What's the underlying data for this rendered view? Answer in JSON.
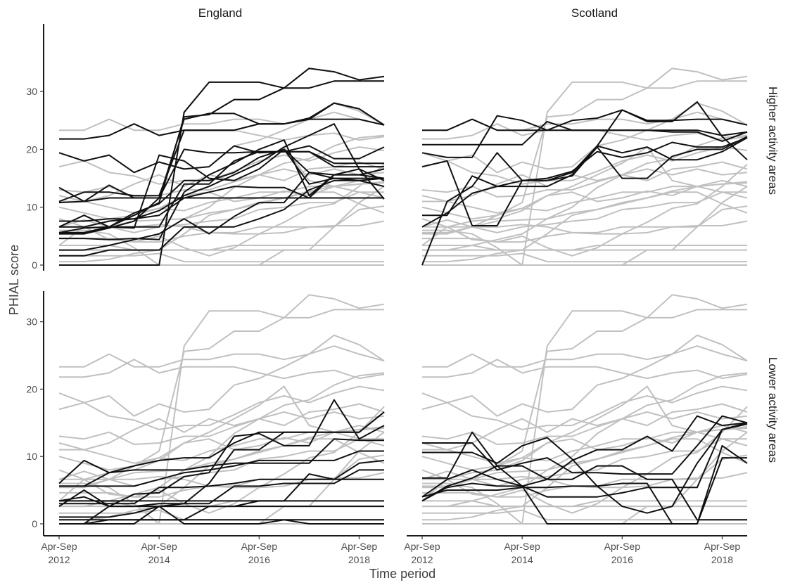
{
  "chart_data": {
    "type": "line",
    "xlabel": "Time period",
    "ylabel": "PHIAL score",
    "columns": [
      "England",
      "Scotland"
    ],
    "rows": [
      "Higher activity areas",
      "Lower activity areas"
    ],
    "x_ticks": [
      {
        "x": 2012,
        "line1": "Apr-Sep",
        "line2": "2012"
      },
      {
        "x": 2014,
        "line1": "Apr-Sep",
        "line2": "2014"
      },
      {
        "x": 2016,
        "line1": "Apr-Sep",
        "line2": "2016"
      },
      {
        "x": 2018,
        "line1": "Apr-Sep",
        "line2": "2018"
      }
    ],
    "y_ticks": [
      0,
      10,
      20,
      30
    ],
    "xlim": [
      2012,
      2018.5
    ],
    "ylim": [
      0,
      35
    ],
    "x": [
      2012,
      2012.5,
      2013,
      2013.5,
      2014,
      2014.5,
      2015,
      2015.5,
      2016,
      2016.5,
      2017,
      2017.5,
      2018,
      2018.5
    ],
    "background_color": "#c0c0c0",
    "highlight_color": "#111111",
    "series_background": [
      [
        23.3,
        23.3,
        25.2,
        23.3,
        23.3,
        24.4,
        24.4,
        25.2,
        25.2,
        24.4,
        25.2,
        26.4,
        25.2,
        24.2
      ],
      [
        21.8,
        21.8,
        22.4,
        24.4,
        22.4,
        23.3,
        23.3,
        23.3,
        22.4,
        21.6,
        22.4,
        22.8,
        21.6,
        22.2
      ],
      [
        19.4,
        18.0,
        19.0,
        16.0,
        17.8,
        16.6,
        17.0,
        20.6,
        21.6,
        23.3,
        25.2,
        28.0,
        26.6,
        24.2
      ],
      [
        17.0,
        18.0,
        16.0,
        15.4,
        14.0,
        14.6,
        14.6,
        16.2,
        18.0,
        19.0,
        18.0,
        19.4,
        20.4,
        19.8
      ],
      [
        13.0,
        12.6,
        13.6,
        11.8,
        12.0,
        13.0,
        13.0,
        14.4,
        15.6,
        16.6,
        15.6,
        16.6,
        15.6,
        16.0
      ],
      [
        11.0,
        11.0,
        12.0,
        14.0,
        15.6,
        13.6,
        15.6,
        14.6,
        15.6,
        14.6,
        16.6,
        17.0,
        17.8,
        16.6
      ],
      [
        12.0,
        11.0,
        10.0,
        9.0,
        9.8,
        12.0,
        12.6,
        11.0,
        11.6,
        12.8,
        12.0,
        13.6,
        14.0,
        14.4
      ],
      [
        10.0,
        9.0,
        8.0,
        8.6,
        9.8,
        9.4,
        10.8,
        11.6,
        12.6,
        12.6,
        13.6,
        13.6,
        14.0,
        14.2
      ],
      [
        8.0,
        6.6,
        6.6,
        7.6,
        7.8,
        8.0,
        9.0,
        9.6,
        10.8,
        11.6,
        12.8,
        13.6,
        12.6,
        12.6
      ],
      [
        6.6,
        7.8,
        6.6,
        5.6,
        6.6,
        7.0,
        7.6,
        8.0,
        9.6,
        10.0,
        10.8,
        10.8,
        12.6,
        11.6
      ],
      [
        5.4,
        5.4,
        6.6,
        6.6,
        7.0,
        6.6,
        5.6,
        5.6,
        6.6,
        6.6,
        6.6,
        6.6,
        9.6,
        10.2
      ],
      [
        4.6,
        4.6,
        4.6,
        4.0,
        4.0,
        5.0,
        5.6,
        5.4,
        5.4,
        5.6,
        6.6,
        6.8,
        6.8,
        7.6
      ],
      [
        3.4,
        3.4,
        3.4,
        2.6,
        2.6,
        2.6,
        2.6,
        3.4,
        3.4,
        3.4,
        3.4,
        3.4,
        3.4,
        3.4
      ],
      [
        2.6,
        2.6,
        2.6,
        2.6,
        2.6,
        2.6,
        2.6,
        2.6,
        2.6,
        2.6,
        2.6,
        2.6,
        2.6,
        2.6
      ],
      [
        1.6,
        1.6,
        1.6,
        1.6,
        2.0,
        0.6,
        0.6,
        0.6,
        0.6,
        0.6,
        0.6,
        0.6,
        0.6,
        0.6
      ],
      [
        0.0,
        0.0,
        0.0,
        0.0,
        0.0,
        0.0,
        0.0,
        0.0,
        0.0,
        0.0,
        0.0,
        0.0,
        0.0,
        0.0
      ],
      [
        0.0,
        0.0,
        0.0,
        0.0,
        0.0,
        26.4,
        31.6,
        31.6,
        31.6,
        30.6,
        34.0,
        33.4,
        32.0,
        32.6
      ],
      [
        5.6,
        5.6,
        6.6,
        8.6,
        10.8,
        25.6,
        26.0,
        28.6,
        28.6,
        30.6,
        30.6,
        31.8,
        31.8,
        31.8
      ],
      [
        6.6,
        6.6,
        7.6,
        8.0,
        9.4,
        12.0,
        13.6,
        15.6,
        17.6,
        20.4,
        14.6,
        13.6,
        14.6,
        13.6
      ],
      [
        2.6,
        2.6,
        3.4,
        4.4,
        5.4,
        8.0,
        10.0,
        13.4,
        15.6,
        17.6,
        18.4,
        20.6,
        22.0,
        22.4
      ],
      [
        3.4,
        6.6,
        4.4,
        4.0,
        5.0,
        3.0,
        1.6,
        3.0,
        5.4,
        7.4,
        9.8,
        10.6,
        13.6,
        17.4
      ],
      [
        6.0,
        6.0,
        5.4,
        3.0,
        0.0,
        0.0,
        0.0,
        0.0,
        0.0,
        2.6,
        2.6,
        6.6,
        10.8,
        13.6
      ],
      [
        0.6,
        0.6,
        1.0,
        2.0,
        2.6,
        5.4,
        8.6,
        9.6,
        10.6,
        11.6,
        12.6,
        12.6,
        10.6,
        9.0
      ]
    ],
    "panels": [
      {
        "column": "England",
        "row": "Higher activity areas",
        "highlight": [
          [
            21.8,
            21.8,
            22.4,
            24.4,
            22.4,
            23.3,
            23.3,
            23.3,
            24.4,
            24.4,
            25.2,
            28.0,
            27.0,
            24.2
          ],
          [
            19.4,
            18.0,
            19.0,
            16.0,
            17.8,
            16.6,
            17.0,
            20.6,
            19.4,
            19.6,
            20.6,
            18.4,
            18.4,
            20.4
          ],
          [
            13.4,
            11.0,
            13.8,
            11.6,
            11.6,
            25.2,
            26.2,
            26.2,
            24.4,
            24.4,
            25.4,
            28.0,
            27.0,
            24.2
          ],
          [
            11.0,
            12.6,
            12.6,
            12.0,
            12.0,
            23.3,
            23.3,
            23.3,
            24.4,
            24.4,
            25.2,
            25.2,
            25.2,
            24.2
          ],
          [
            10.8,
            11.0,
            11.6,
            11.6,
            11.6,
            11.6,
            11.6,
            11.6,
            11.6,
            11.6,
            11.6,
            11.6,
            11.6,
            11.6
          ],
          [
            7.6,
            7.6,
            8.0,
            8.0,
            8.6,
            11.6,
            12.6,
            13.6,
            13.4,
            13.4,
            11.6,
            15.6,
            15.6,
            15.0
          ],
          [
            6.6,
            8.6,
            6.6,
            9.0,
            10.6,
            14.6,
            14.6,
            16.0,
            18.6,
            20.0,
            14.0,
            15.0,
            15.0,
            15.0
          ],
          [
            5.6,
            5.6,
            6.6,
            6.6,
            6.6,
            14.0,
            14.0,
            18.0,
            19.6,
            19.6,
            19.6,
            17.6,
            17.6,
            17.6
          ],
          [
            5.6,
            6.4,
            6.6,
            6.4,
            19.0,
            18.0,
            15.0,
            14.6,
            16.6,
            20.0,
            16.0,
            15.6,
            15.6,
            16.6
          ],
          [
            5.4,
            5.4,
            6.4,
            7.6,
            11.6,
            20.0,
            19.4,
            19.4,
            19.6,
            19.6,
            19.6,
            17.0,
            17.0,
            17.0
          ],
          [
            4.6,
            4.6,
            4.4,
            4.6,
            4.4,
            12.6,
            15.6,
            17.6,
            20.0,
            21.6,
            12.0,
            15.6,
            16.6,
            11.4
          ],
          [
            1.6,
            1.6,
            2.6,
            2.6,
            2.6,
            6.6,
            6.6,
            6.6,
            8.0,
            9.6,
            13.0,
            14.6,
            14.6,
            15.0
          ],
          [
            0.0,
            0.0,
            0.0,
            0.0,
            0.0,
            26.4,
            31.6,
            31.6,
            31.6,
            30.6,
            34.0,
            33.4,
            32.0,
            32.6
          ],
          [
            5.6,
            5.6,
            6.6,
            8.6,
            10.8,
            25.6,
            26.0,
            28.6,
            28.6,
            30.6,
            30.6,
            31.8,
            31.8,
            31.8
          ],
          [
            6.6,
            6.6,
            7.6,
            8.0,
            9.4,
            12.0,
            13.6,
            15.6,
            17.6,
            20.4,
            22.4,
            24.4,
            16.6,
            14.6
          ],
          [
            2.6,
            2.6,
            3.4,
            4.4,
            5.4,
            8.0,
            5.4,
            8.4,
            10.8,
            10.8,
            16.0,
            15.0,
            14.6,
            13.6
          ]
        ]
      },
      {
        "column": "Scotland",
        "row": "Higher activity areas",
        "highlight": [
          [
            23.3,
            23.3,
            25.2,
            23.3,
            23.3,
            23.3,
            23.3,
            23.3,
            23.3,
            23.3,
            23.3,
            23.3,
            22.4,
            23.0
          ],
          [
            20.8,
            20.8,
            20.8,
            20.8,
            20.8,
            24.8,
            23.3,
            23.3,
            23.3,
            23.3,
            23.0,
            23.0,
            21.4,
            23.0
          ],
          [
            19.4,
            18.6,
            18.6,
            25.8,
            25.0,
            23.3,
            25.0,
            25.4,
            26.8,
            24.8,
            24.8,
            28.2,
            22.2,
            18.2
          ],
          [
            17.0,
            18.0,
            6.8,
            6.8,
            14.6,
            14.6,
            15.4,
            20.4,
            15.0,
            15.0,
            18.8,
            20.0,
            20.0,
            22.2
          ],
          [
            8.6,
            8.6,
            15.4,
            13.6,
            13.6,
            13.6,
            15.6,
            20.6,
            19.4,
            20.4,
            18.2,
            18.2,
            19.6,
            22.0
          ],
          [
            0.0,
            11.0,
            13.6,
            19.4,
            14.6,
            15.0,
            16.2,
            19.6,
            18.6,
            19.4,
            21.2,
            20.4,
            20.4,
            22.0
          ],
          [
            6.6,
            9.0,
            12.4,
            13.6,
            14.6,
            14.6,
            16.0,
            20.6,
            26.8,
            25.0,
            25.0,
            25.2,
            25.2,
            24.2
          ]
        ]
      },
      {
        "column": "England",
        "row": "Lower activity areas",
        "highlight": [
          [
            6.0,
            9.4,
            7.6,
            8.6,
            9.4,
            9.8,
            9.8,
            12.0,
            13.6,
            13.6,
            13.6,
            13.6,
            13.6,
            16.6
          ],
          [
            5.6,
            5.6,
            7.6,
            8.0,
            8.0,
            8.0,
            8.6,
            9.0,
            9.0,
            9.0,
            9.0,
            12.6,
            12.4,
            12.4
          ],
          [
            5.6,
            5.6,
            5.6,
            5.6,
            6.6,
            7.6,
            8.0,
            8.6,
            9.4,
            9.4,
            9.4,
            9.4,
            10.8,
            10.8
          ],
          [
            3.4,
            3.4,
            3.4,
            3.4,
            3.4,
            3.4,
            3.4,
            3.4,
            3.4,
            3.4,
            3.4,
            3.4,
            3.4,
            3.4
          ],
          [
            2.6,
            5.0,
            2.6,
            4.4,
            4.6,
            7.0,
            7.6,
            13.0,
            13.4,
            11.6,
            11.6,
            18.4,
            12.6,
            14.6
          ],
          [
            3.0,
            3.0,
            3.0,
            3.0,
            5.4,
            5.4,
            5.6,
            6.0,
            6.6,
            6.6,
            6.6,
            6.6,
            6.6,
            6.6
          ],
          [
            1.0,
            1.0,
            1.0,
            1.6,
            2.6,
            2.6,
            2.6,
            2.6,
            3.4,
            3.4,
            7.4,
            6.6,
            9.0,
            9.4
          ],
          [
            0.6,
            0.6,
            0.6,
            0.6,
            0.6,
            0.6,
            0.6,
            0.6,
            0.6,
            0.6,
            0.6,
            0.6,
            0.6,
            0.6
          ],
          [
            0.0,
            0.0,
            2.6,
            2.6,
            3.0,
            3.0,
            6.0,
            11.0,
            11.0,
            13.6,
            13.6,
            13.6,
            13.6,
            16.6
          ],
          [
            0.0,
            0.0,
            0.0,
            0.0,
            2.6,
            3.0,
            3.0,
            5.6,
            5.6,
            6.0,
            6.0,
            6.0,
            8.0,
            8.0
          ],
          [
            3.4,
            4.0,
            2.6,
            2.6,
            2.6,
            0.0,
            0.0,
            0.0,
            0.0,
            0.6,
            0.0,
            0.0,
            0.0,
            0.0
          ],
          [
            0.0,
            0.0,
            0.6,
            0.6,
            0.6,
            0.6,
            2.6,
            2.6,
            2.6,
            2.6,
            2.6,
            2.6,
            2.6,
            2.6
          ]
        ]
      },
      {
        "column": "Scotland",
        "row": "Lower activity areas",
        "highlight": [
          [
            12.0,
            12.0,
            12.0,
            8.0,
            9.0,
            9.8,
            7.6,
            7.6,
            7.4,
            7.4,
            7.4,
            11.6,
            16.0,
            15.0
          ],
          [
            10.6,
            10.6,
            10.6,
            9.0,
            11.6,
            12.8,
            9.6,
            5.6,
            2.6,
            1.6,
            2.6,
            9.0,
            14.0,
            15.0
          ],
          [
            6.8,
            6.8,
            13.6,
            8.6,
            8.6,
            6.6,
            6.6,
            8.6,
            8.6,
            6.6,
            6.6,
            0.6,
            0.6,
            0.6
          ],
          [
            3.4,
            5.6,
            6.8,
            8.6,
            5.6,
            0.0,
            0.0,
            0.0,
            0.0,
            0.0,
            0.0,
            0.0,
            9.8,
            9.8
          ],
          [
            4.0,
            6.6,
            8.0,
            6.6,
            5.6,
            4.0,
            4.0,
            4.0,
            4.6,
            5.4,
            5.4,
            5.4,
            14.0,
            14.8
          ],
          [
            3.4,
            5.4,
            6.0,
            5.6,
            5.6,
            6.6,
            9.4,
            11.0,
            11.0,
            13.0,
            10.8,
            16.0,
            14.6,
            15.0
          ],
          [
            4.0,
            5.0,
            5.0,
            5.0,
            5.4,
            5.4,
            5.6,
            5.6,
            6.0,
            6.0,
            0.0,
            0.0,
            11.6,
            9.0
          ]
        ]
      }
    ]
  }
}
